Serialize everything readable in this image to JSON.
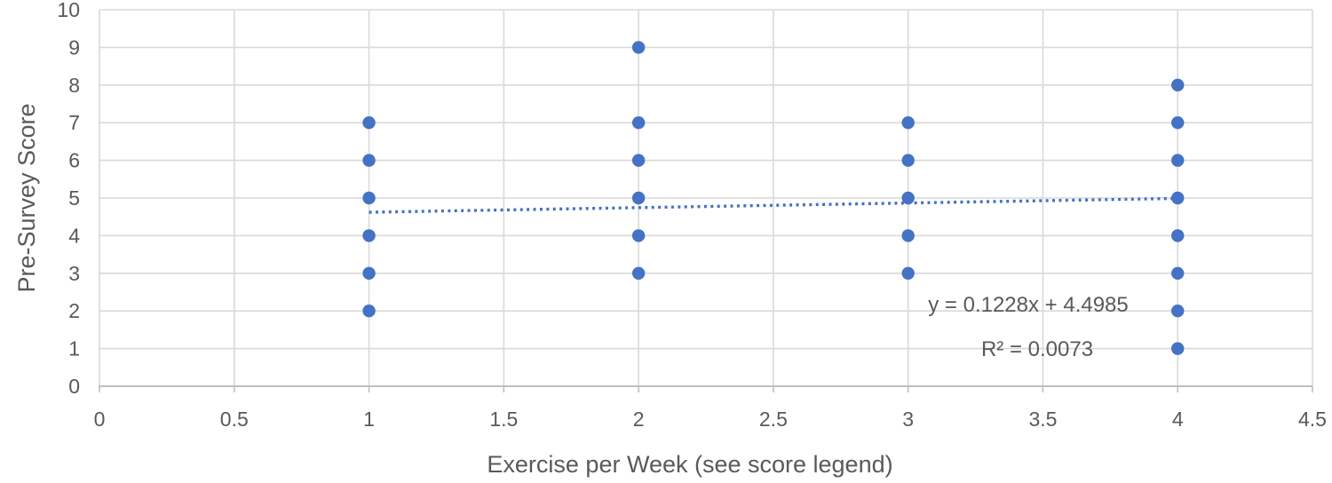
{
  "chart_data": {
    "type": "scatter",
    "title": "",
    "xlabel": "Exercise per Week (see score legend)",
    "ylabel": "Pre-Survey Score",
    "xlim": [
      0,
      4.5
    ],
    "ylim": [
      0,
      10
    ],
    "x_ticks": [
      0,
      0.5,
      1,
      1.5,
      2,
      2.5,
      3,
      3.5,
      4,
      4.5
    ],
    "y_ticks": [
      0,
      1,
      2,
      3,
      4,
      5,
      6,
      7,
      8,
      9,
      10
    ],
    "grid": true,
    "legend": "none",
    "points": [
      {
        "x": 1,
        "y": 2
      },
      {
        "x": 1,
        "y": 3
      },
      {
        "x": 1,
        "y": 4
      },
      {
        "x": 1,
        "y": 5
      },
      {
        "x": 1,
        "y": 6
      },
      {
        "x": 1,
        "y": 7
      },
      {
        "x": 2,
        "y": 3
      },
      {
        "x": 2,
        "y": 4
      },
      {
        "x": 2,
        "y": 5
      },
      {
        "x": 2,
        "y": 6
      },
      {
        "x": 2,
        "y": 7
      },
      {
        "x": 2,
        "y": 9
      },
      {
        "x": 3,
        "y": 3
      },
      {
        "x": 3,
        "y": 4
      },
      {
        "x": 3,
        "y": 5
      },
      {
        "x": 3,
        "y": 6
      },
      {
        "x": 3,
        "y": 7
      },
      {
        "x": 4,
        "y": 1
      },
      {
        "x": 4,
        "y": 2
      },
      {
        "x": 4,
        "y": 3
      },
      {
        "x": 4,
        "y": 4
      },
      {
        "x": 4,
        "y": 5
      },
      {
        "x": 4,
        "y": 6
      },
      {
        "x": 4,
        "y": 7
      },
      {
        "x": 4,
        "y": 8
      }
    ],
    "trendline": {
      "slope": 0.1228,
      "intercept": 4.4985,
      "x_start": 1,
      "x_end": 4,
      "style": "dotted",
      "equation_label": "y = 0.1228x + 4.4985",
      "r_squared_label": "R² = 0.0073"
    },
    "colors": {
      "marker": "#4472C4",
      "trendline": "#4472C4",
      "gridline": "#D9D9D9",
      "axis_line": "#BFBFBF",
      "text": "#595959"
    }
  }
}
